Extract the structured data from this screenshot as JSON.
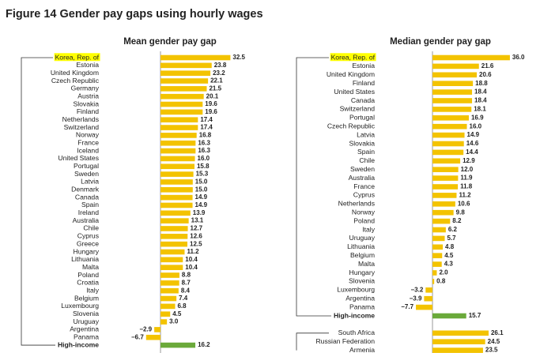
{
  "title": "Figure 14  Gender pay gaps using hourly wages",
  "chart_data": [
    {
      "type": "bar",
      "orientation": "horizontal",
      "title": "Mean gender pay gap",
      "categories": [
        "Korea, Rep. of",
        "Estonia",
        "United Kingdom",
        "Czech Republic",
        "Germany",
        "Austria",
        "Slovakia",
        "Finland",
        "Netherlands",
        "Switzerland",
        "Norway",
        "France",
        "Iceland",
        "United States",
        "Portugal",
        "Sweden",
        "Latvia",
        "Denmark",
        "Canada",
        "Spain",
        "Ireland",
        "Australia",
        "Chile",
        "Cyprus",
        "Greece",
        "Hungary",
        "Lithuania",
        "Malta",
        "Poland",
        "Croatia",
        "Italy",
        "Belgium",
        "Luxembourg",
        "Slovenia",
        "Uruguay",
        "Argentina",
        "Panama",
        "High-income"
      ],
      "values": [
        32.5,
        23.8,
        23.2,
        22.1,
        21.5,
        20.1,
        19.6,
        19.6,
        17.4,
        17.4,
        16.8,
        16.3,
        16.3,
        16.0,
        15.8,
        15.3,
        15.0,
        15.0,
        14.9,
        14.9,
        13.9,
        13.1,
        12.7,
        12.6,
        12.5,
        11.2,
        10.4,
        10.4,
        8.8,
        8.7,
        8.4,
        7.4,
        6.8,
        4.5,
        3.0,
        -2.9,
        -6.7,
        16.2
      ],
      "value_labels": [
        "32.5",
        "23.8",
        "23.2",
        "22.1",
        "21.5",
        "20.1",
        "19.6",
        "19.6",
        "17.4",
        "17.4",
        "16.8",
        "16.3",
        "16.3",
        "16.0",
        "15.8",
        "15.3",
        "15.0",
        "15.0",
        "14.9",
        "14.9",
        "13.9",
        "13.1",
        "12.7",
        "12.6",
        "12.5",
        "11.2",
        "10.4",
        "10.4",
        "8.8",
        "8.7",
        "8.4",
        "7.4",
        "6.8",
        "4.5",
        "3.0",
        "−2.9",
        "−6.7",
        "16.2"
      ],
      "colors": [
        "#f3c300",
        "#f3c300",
        "#f3c300",
        "#f3c300",
        "#f3c300",
        "#f3c300",
        "#f3c300",
        "#f3c300",
        "#f3c300",
        "#f3c300",
        "#f3c300",
        "#f3c300",
        "#f3c300",
        "#f3c300",
        "#f3c300",
        "#f3c300",
        "#f3c300",
        "#f3c300",
        "#f3c300",
        "#f3c300",
        "#f3c300",
        "#f3c300",
        "#f3c300",
        "#f3c300",
        "#f3c300",
        "#f3c300",
        "#f3c300",
        "#f3c300",
        "#f3c300",
        "#f3c300",
        "#f3c300",
        "#f3c300",
        "#f3c300",
        "#f3c300",
        "#f3c300",
        "#f3c300",
        "#f3c300",
        "#6aa93a"
      ],
      "label_styles": [
        "highlight",
        null,
        null,
        null,
        null,
        null,
        null,
        null,
        null,
        null,
        null,
        null,
        null,
        null,
        null,
        null,
        null,
        null,
        null,
        null,
        null,
        null,
        null,
        null,
        null,
        null,
        null,
        null,
        null,
        null,
        null,
        null,
        null,
        null,
        null,
        null,
        null,
        "bold"
      ],
      "highlight_color": "#ffff00"
    },
    {
      "type": "bar",
      "orientation": "horizontal",
      "title": "Median gender pay gap",
      "categories": [
        "Korea, Rep. of",
        "Estonia",
        "United Kingdom",
        "Finland",
        "United States",
        "Canada",
        "Switzerland",
        "Portugal",
        "Czech Republic",
        "Latvia",
        "Slovakia",
        "Spain",
        "Chile",
        "Sweden",
        "Australia",
        "France",
        "Cyprus",
        "Netherlands",
        "Norway",
        "Poland",
        "Italy",
        "Uruguay",
        "Lithuania",
        "Belgium",
        "Malta",
        "Hungary",
        "Slovenia",
        "Luxembourg",
        "Argentina",
        "Panama",
        "High-income",
        null,
        "South Africa",
        "Russian Federation",
        "Armenia"
      ],
      "values": [
        36.0,
        21.6,
        20.6,
        18.8,
        18.4,
        18.4,
        18.1,
        16.9,
        16.0,
        14.9,
        14.6,
        14.4,
        12.9,
        12.0,
        11.9,
        11.8,
        11.2,
        10.6,
        9.8,
        8.2,
        6.2,
        5.7,
        4.8,
        4.5,
        4.3,
        2.0,
        0.8,
        -3.2,
        -3.9,
        -7.7,
        15.7,
        null,
        26.1,
        24.5,
        23.5
      ],
      "value_labels": [
        "36.0",
        "21.6",
        "20.6",
        "18.8",
        "18.4",
        "18.4",
        "18.1",
        "16.9",
        "16.0",
        "14.9",
        "14.6",
        "14.4",
        "12.9",
        "12.0",
        "11.9",
        "11.8",
        "11.2",
        "10.6",
        "9.8",
        "8.2",
        "6.2",
        "5.7",
        "4.8",
        "4.5",
        "4.3",
        "2.0",
        "0.8",
        "−3.2",
        "−3.9",
        "−7.7",
        "15.7",
        null,
        "26.1",
        "24.5",
        "23.5"
      ],
      "colors": [
        "#f3c300",
        "#f3c300",
        "#f3c300",
        "#f3c300",
        "#f3c300",
        "#f3c300",
        "#f3c300",
        "#f3c300",
        "#f3c300",
        "#f3c300",
        "#f3c300",
        "#f3c300",
        "#f3c300",
        "#f3c300",
        "#f3c300",
        "#f3c300",
        "#f3c300",
        "#f3c300",
        "#f3c300",
        "#f3c300",
        "#f3c300",
        "#f3c300",
        "#f3c300",
        "#f3c300",
        "#f3c300",
        "#f3c300",
        "#f3c300",
        "#f3c300",
        "#f3c300",
        "#f3c300",
        "#6aa93a",
        null,
        "#f3c300",
        "#f3c300",
        "#f3c300"
      ],
      "label_styles": [
        "highlight",
        null,
        null,
        null,
        null,
        null,
        null,
        null,
        null,
        null,
        null,
        null,
        null,
        null,
        null,
        null,
        null,
        null,
        null,
        null,
        null,
        null,
        null,
        null,
        null,
        null,
        null,
        null,
        null,
        null,
        "bold",
        null,
        null,
        null,
        null
      ],
      "highlight_color": "#ffff00"
    }
  ]
}
